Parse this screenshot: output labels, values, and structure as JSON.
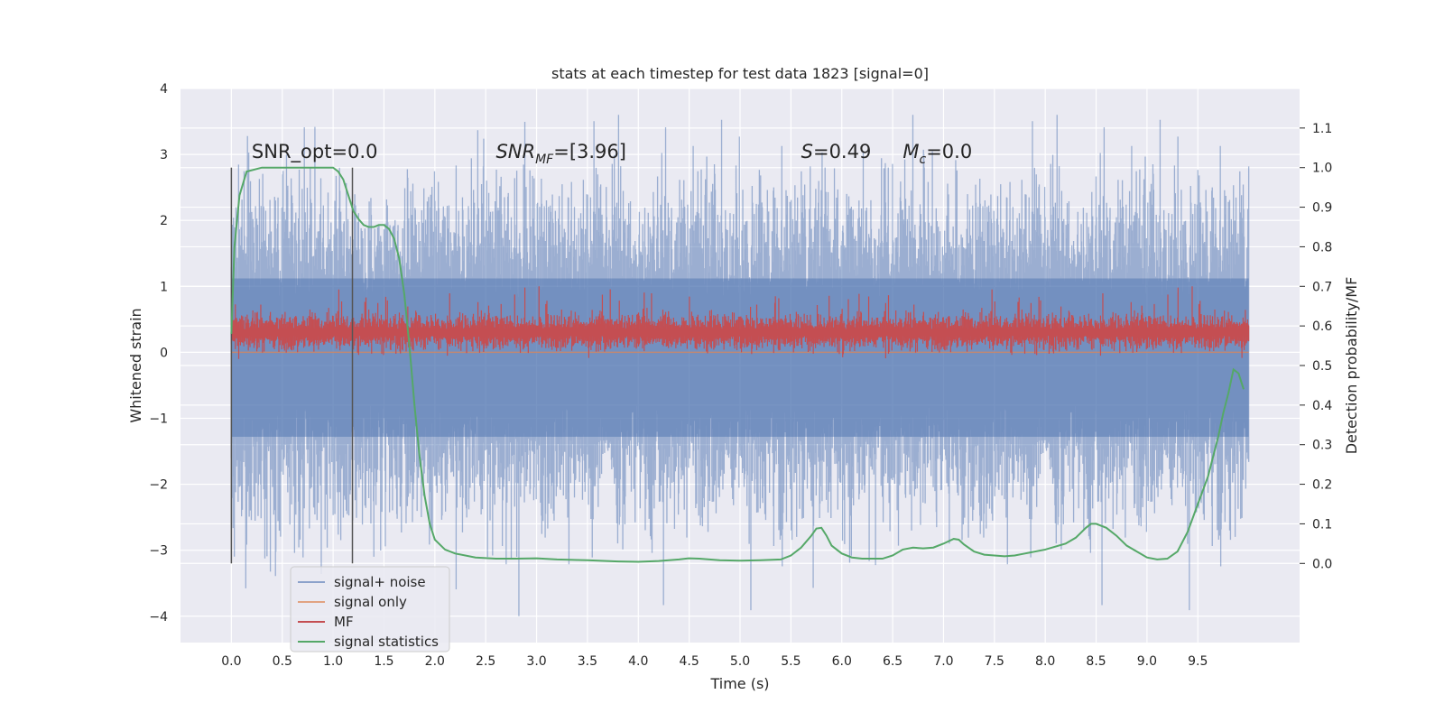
{
  "chart_data": {
    "type": "line",
    "title": "stats at each timestep for test data 1823 [signal=0]",
    "xlabel": "Time (s)",
    "ylabel_left": "Whitened strain",
    "ylabel_right": "Detection probability/MF",
    "xlim": [
      -0.5,
      10.5
    ],
    "ylim_left": [
      -4.4,
      4.0
    ],
    "ylim_right": [
      -0.2,
      1.2
    ],
    "x_ticks": [
      "0.0",
      "0.5",
      "1.0",
      "1.5",
      "2.0",
      "2.5",
      "3.0",
      "3.5",
      "4.0",
      "4.5",
      "5.0",
      "5.5",
      "6.0",
      "6.5",
      "7.0",
      "7.5",
      "8.0",
      "8.5",
      "9.0",
      "9.5"
    ],
    "y_left_ticks": [
      "4",
      "3",
      "2",
      "1",
      "0",
      "−1",
      "−2",
      "−3",
      "−4"
    ],
    "y_right_ticks": [
      "1.1",
      "1.0",
      "0.9",
      "0.8",
      "0.7",
      "0.6",
      "0.5",
      "0.4",
      "0.3",
      "0.2",
      "0.1",
      "0.0"
    ],
    "grid": true,
    "legend_position": "lower-left",
    "colors": {
      "background": "#eaeaf2",
      "grid": "#ffffff",
      "signal_noise": "#4c72b0",
      "signal_only": "#dd8452",
      "mf": "#c44e52",
      "statistics": "#55a868"
    },
    "annotations": {
      "snr_opt": "SNR_opt=0.0",
      "snr_mf_prefix": "SNR",
      "snr_mf_sub": "MF",
      "snr_mf_value": "=[3.96]",
      "s_label": "S",
      "s_value": "=0.49",
      "mc_label": "M",
      "mc_sub": "c",
      "mc_value": "=0.0"
    },
    "vlines_x": [
      0.0,
      1.19
    ],
    "vline_range_left": [
      -3.2,
      2.8
    ],
    "series": [
      {
        "name": "signal+ noise",
        "axis": "left",
        "center": 0.0,
        "band": 1.6,
        "range": [
          -4.0,
          3.6
        ]
      },
      {
        "name": "signal only",
        "axis": "left",
        "values_constant": 0.0
      },
      {
        "name": "MF",
        "axis": "left",
        "center": 0.3,
        "band": 0.35,
        "range": [
          -0.1,
          1.0
        ]
      },
      {
        "name": "signal statistics",
        "axis": "right",
        "x": [
          0.0,
          0.03,
          0.08,
          0.15,
          0.3,
          0.5,
          0.7,
          0.9,
          1.0,
          1.05,
          1.1,
          1.15,
          1.2,
          1.25,
          1.3,
          1.35,
          1.4,
          1.45,
          1.5,
          1.55,
          1.6,
          1.65,
          1.7,
          1.75,
          1.8,
          1.85,
          1.9,
          1.95,
          2.0,
          2.1,
          2.2,
          2.4,
          2.6,
          2.8,
          3.0,
          3.2,
          3.5,
          3.8,
          4.0,
          4.2,
          4.4,
          4.5,
          4.6,
          4.8,
          5.0,
          5.2,
          5.4,
          5.5,
          5.6,
          5.7,
          5.75,
          5.8,
          5.85,
          5.9,
          6.0,
          6.1,
          6.2,
          6.4,
          6.5,
          6.6,
          6.7,
          6.8,
          6.9,
          7.0,
          7.1,
          7.15,
          7.2,
          7.3,
          7.4,
          7.5,
          7.6,
          7.7,
          7.8,
          8.0,
          8.2,
          8.3,
          8.4,
          8.45,
          8.5,
          8.6,
          8.7,
          8.8,
          8.9,
          9.0,
          9.1,
          9.2,
          9.3,
          9.4,
          9.5,
          9.6,
          9.7,
          9.75,
          9.8,
          9.85,
          9.9,
          9.95
        ],
        "values": [
          0.58,
          0.8,
          0.93,
          0.99,
          1.0,
          1.0,
          1.0,
          1.0,
          1.0,
          0.99,
          0.97,
          0.93,
          0.89,
          0.87,
          0.855,
          0.85,
          0.85,
          0.855,
          0.855,
          0.845,
          0.82,
          0.77,
          0.68,
          0.55,
          0.4,
          0.27,
          0.17,
          0.1,
          0.06,
          0.035,
          0.025,
          0.015,
          0.012,
          0.012,
          0.013,
          0.01,
          0.008,
          0.005,
          0.004,
          0.006,
          0.01,
          0.013,
          0.012,
          0.008,
          0.007,
          0.008,
          0.01,
          0.02,
          0.04,
          0.07,
          0.088,
          0.09,
          0.07,
          0.045,
          0.025,
          0.015,
          0.012,
          0.012,
          0.02,
          0.035,
          0.04,
          0.038,
          0.04,
          0.05,
          0.062,
          0.06,
          0.048,
          0.03,
          0.022,
          0.02,
          0.018,
          0.02,
          0.025,
          0.035,
          0.05,
          0.065,
          0.09,
          0.1,
          0.1,
          0.09,
          0.07,
          0.045,
          0.03,
          0.015,
          0.01,
          0.012,
          0.03,
          0.08,
          0.15,
          0.22,
          0.32,
          0.38,
          0.43,
          0.49,
          0.48,
          0.44
        ]
      }
    ]
  }
}
